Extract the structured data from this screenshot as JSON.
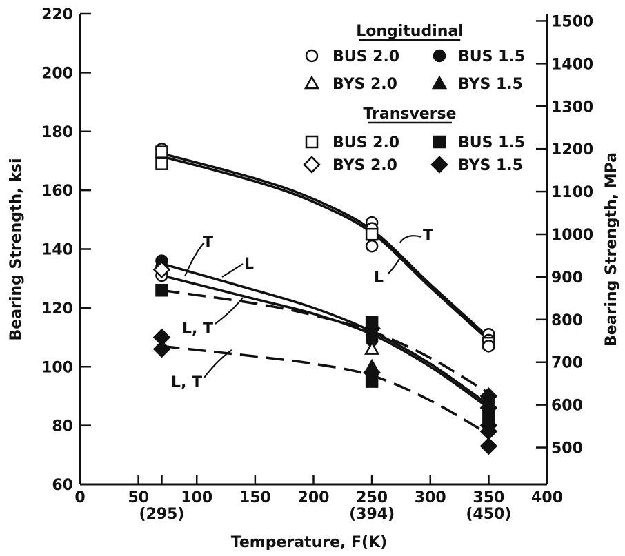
{
  "chart_data": {
    "type": "scatter",
    "xlabel": "Temperature, F(K)",
    "ylabel_left": "Bearing Strength, ksi",
    "ylabel_right": "Bearing Strength, MPa",
    "xlim": [
      0,
      400
    ],
    "ylim_left": [
      60,
      220
    ],
    "ylim_right_MPa": [
      413.7,
      1516.8
    ],
    "x_ticks": [
      0,
      50,
      100,
      150,
      200,
      250,
      300,
      350,
      400
    ],
    "x_tick_labels": [
      "0",
      "50",
      "100",
      "150",
      "200",
      "250",
      "300",
      "350",
      "400"
    ],
    "x_secondary_labels": [
      {
        "x": 70,
        "label": "(295)"
      },
      {
        "x": 250,
        "label": "(394)"
      },
      {
        "x": 350,
        "label": "(450)"
      }
    ],
    "y_ticks_left": [
      60,
      80,
      100,
      120,
      140,
      160,
      180,
      200,
      220
    ],
    "y_tick_labels_left": [
      "60",
      "80",
      "100",
      "120",
      "140",
      "160",
      "180",
      "200",
      "220"
    ],
    "y_ticks_right": [
      500,
      600,
      700,
      800,
      900,
      1000,
      1100,
      1200,
      1300,
      1400,
      1500
    ],
    "y_tick_labels_right": [
      "500",
      "600",
      "700",
      "800",
      "900",
      "1000",
      "1100",
      "1200",
      "1300",
      "1400",
      "1500"
    ],
    "grid": false,
    "legend": {
      "placement": "top-right",
      "groups": [
        {
          "title": "Longitudinal",
          "entries": [
            {
              "label": "BUS 2.0",
              "marker": "circle-open"
            },
            {
              "label": "BUS 1.5",
              "marker": "circle-filled"
            },
            {
              "label": "BYS 2.0",
              "marker": "triangle-open"
            },
            {
              "label": "BYS 1.5",
              "marker": "triangle-filled"
            }
          ]
        },
        {
          "title": "Transverse",
          "entries": [
            {
              "label": "BUS 2.0",
              "marker": "square-open"
            },
            {
              "label": "BUS 1.5",
              "marker": "square-filled"
            },
            {
              "label": "BYS 2.0",
              "marker": "diamond-open"
            },
            {
              "label": "BYS 1.5",
              "marker": "diamond-filled"
            }
          ]
        }
      ]
    },
    "points": [
      {
        "marker": "circle-open",
        "x": 70,
        "y": 174
      },
      {
        "marker": "circle-open",
        "x": 70,
        "y": 172
      },
      {
        "marker": "circle-open",
        "x": 70,
        "y": 171
      },
      {
        "marker": "square-open",
        "x": 70,
        "y": 169
      },
      {
        "marker": "square-open",
        "x": 70,
        "y": 173
      },
      {
        "marker": "circle-open",
        "x": 250,
        "y": 149
      },
      {
        "marker": "circle-open",
        "x": 250,
        "y": 147
      },
      {
        "marker": "square-open",
        "x": 250,
        "y": 145
      },
      {
        "marker": "circle-open",
        "x": 250,
        "y": 141
      },
      {
        "marker": "circle-open",
        "x": 350,
        "y": 111
      },
      {
        "marker": "circle-open",
        "x": 350,
        "y": 109
      },
      {
        "marker": "square-open",
        "x": 350,
        "y": 108
      },
      {
        "marker": "circle-open",
        "x": 350,
        "y": 107
      },
      {
        "marker": "circle-filled",
        "x": 70,
        "y": 136
      },
      {
        "marker": "circle-filled",
        "x": 70,
        "y": 134
      },
      {
        "marker": "circle-open",
        "x": 70,
        "y": 131
      },
      {
        "marker": "diamond-open",
        "x": 70,
        "y": 133
      },
      {
        "marker": "square-filled",
        "x": 70,
        "y": 126
      },
      {
        "marker": "diamond-filled",
        "x": 70,
        "y": 110
      },
      {
        "marker": "diamond-filled",
        "x": 70,
        "y": 106
      },
      {
        "marker": "square-filled",
        "x": 250,
        "y": 115
      },
      {
        "marker": "diamond-filled",
        "x": 250,
        "y": 113
      },
      {
        "marker": "circle-filled",
        "x": 250,
        "y": 111
      },
      {
        "marker": "circle-filled",
        "x": 250,
        "y": 109
      },
      {
        "marker": "triangle-open",
        "x": 250,
        "y": 106
      },
      {
        "marker": "triangle-filled",
        "x": 250,
        "y": 100
      },
      {
        "marker": "diamond-filled",
        "x": 250,
        "y": 98
      },
      {
        "marker": "square-filled",
        "x": 250,
        "y": 95
      },
      {
        "marker": "diamond-filled",
        "x": 350,
        "y": 90
      },
      {
        "marker": "circle-filled",
        "x": 350,
        "y": 88
      },
      {
        "marker": "diamond-filled",
        "x": 350,
        "y": 86
      },
      {
        "marker": "square-filled",
        "x": 350,
        "y": 83
      },
      {
        "marker": "diamond-filled",
        "x": 350,
        "y": 80
      },
      {
        "marker": "diamond-filled",
        "x": 350,
        "y": 78
      },
      {
        "marker": "diamond-filled",
        "x": 350,
        "y": 73
      }
    ],
    "curves": [
      {
        "style": "solid",
        "points": [
          [
            70,
            172.5
          ],
          [
            150,
            164
          ],
          [
            200,
            157
          ],
          [
            250,
            146.5
          ],
          [
            300,
            128
          ],
          [
            350,
            110
          ]
        ]
      },
      {
        "style": "solid",
        "points": [
          [
            70,
            171.5
          ],
          [
            150,
            163
          ],
          [
            200,
            156
          ],
          [
            250,
            145.5
          ],
          [
            300,
            127
          ],
          [
            350,
            109
          ]
        ]
      },
      {
        "style": "solid",
        "points": [
          [
            70,
            135
          ],
          [
            150,
            126
          ],
          [
            200,
            120
          ],
          [
            250,
            112
          ],
          [
            300,
            101
          ],
          [
            350,
            87
          ]
        ]
      },
      {
        "style": "solid",
        "points": [
          [
            70,
            131
          ],
          [
            150,
            123
          ],
          [
            200,
            118
          ],
          [
            250,
            111
          ],
          [
            300,
            100
          ],
          [
            350,
            86
          ]
        ]
      },
      {
        "style": "dashed",
        "points": [
          [
            70,
            126
          ],
          [
            150,
            121.5
          ],
          [
            200,
            117.5
          ],
          [
            250,
            112
          ],
          [
            300,
            103
          ],
          [
            350,
            91
          ]
        ]
      },
      {
        "style": "dashed",
        "points": [
          [
            70,
            107
          ],
          [
            150,
            103.5
          ],
          [
            200,
            101
          ],
          [
            250,
            97
          ],
          [
            300,
            88.5
          ],
          [
            350,
            77
          ]
        ]
      }
    ],
    "annotations": [
      {
        "text": "T",
        "x": 302,
        "y": 141,
        "leader_to": [
          279,
          134
        ]
      },
      {
        "text": "L",
        "x": 358,
        "y": 137,
        "leader_to": [
          331,
          132
        ]
      },
      {
        "text": "L, T",
        "x": 259,
        "y": 117,
        "leader_to": [
          352,
          122
        ]
      },
      {
        "text": "L, T",
        "x": 243,
        "y": 97,
        "leader_to": [
          320,
          103
        ]
      },
      {
        "text": "T",
        "x": 618,
        "y": 138,
        "leader_to": [
          575,
          140
        ]
      },
      {
        "text": "L",
        "x": 550,
        "y": 128,
        "leader_to": [
          571,
          138
        ]
      }
    ]
  }
}
